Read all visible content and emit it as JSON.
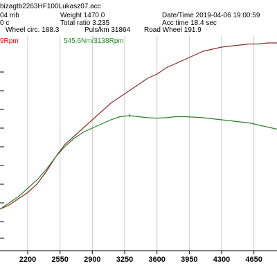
{
  "header": {
    "filename": "bizagtb2263HF100Lukasz07.acc",
    "row1_left_cut": "04 mb",
    "weight": "Weight  1470.0",
    "datetime": "Date/Time  2019-04-06 19:00:59",
    "row2_left_cut": "0 c",
    "total_ratio": "Total ratio 3.235",
    "acc_time": "Acc time  18.4 sec",
    "wheel_circ": "Wheel circ. 188.3",
    "puls_km": "Puls/km  31864",
    "road_wheel": "Road Wheel 191.9"
  },
  "legend": {
    "power_label_cut": "9Rpm",
    "torque_label": "545.6Nm/3138Rpm"
  },
  "colors": {
    "power": "#8a2b2b",
    "torque": "#2a7d2a",
    "grid": "#c8c8c8",
    "axis": "#000000",
    "legend_red": "#ff0000",
    "legend_green": "#2a8a2a"
  },
  "chart_data": {
    "type": "line",
    "xlim": [
      1900,
      4900
    ],
    "ylim": [
      0,
      1
    ],
    "x_ticks": [
      2200,
      2550,
      2900,
      3250,
      3600,
      3950,
      4300,
      4650
    ],
    "x_tick_labels": [
      "2200",
      "2550",
      "2900",
      "3250",
      "3600",
      "3950",
      "4300",
      "4650"
    ],
    "y_tick_values": [
      0.06,
      0.14,
      0.23,
      0.32,
      0.41,
      0.5,
      0.59,
      0.68,
      0.77,
      0.86
    ],
    "grid": true,
    "series": [
      {
        "key": "power",
        "x": [
          1900,
          2000,
          2100,
          2200,
          2300,
          2400,
          2500,
          2600,
          2700,
          2800,
          2900,
          3000,
          3100,
          3200,
          3300,
          3400,
          3500,
          3600,
          3700,
          3800,
          3900,
          4000,
          4100,
          4200,
          4300,
          4400,
          4500,
          4600,
          4700,
          4800,
          4900
        ],
        "y": [
          0.2,
          0.22,
          0.25,
          0.28,
          0.32,
          0.38,
          0.45,
          0.51,
          0.55,
          0.59,
          0.63,
          0.67,
          0.71,
          0.74,
          0.77,
          0.8,
          0.83,
          0.85,
          0.88,
          0.9,
          0.92,
          0.94,
          0.96,
          0.97,
          0.98,
          0.985,
          0.99,
          0.995,
          0.995,
          1.0,
          1.0
        ]
      },
      {
        "key": "torque",
        "x": [
          1900,
          2000,
          2100,
          2200,
          2300,
          2400,
          2500,
          2600,
          2700,
          2800,
          2900,
          3000,
          3100,
          3200,
          3300,
          3400,
          3500,
          3600,
          3700,
          3800,
          3900,
          4000,
          4100,
          4200,
          4300,
          4400,
          4500,
          4600,
          4700,
          4800,
          4900
        ],
        "y": [
          0.2,
          0.23,
          0.26,
          0.3,
          0.34,
          0.39,
          0.45,
          0.5,
          0.54,
          0.57,
          0.59,
          0.61,
          0.63,
          0.645,
          0.65,
          0.645,
          0.64,
          0.638,
          0.64,
          0.645,
          0.645,
          0.643,
          0.64,
          0.635,
          0.63,
          0.625,
          0.62,
          0.615,
          0.605,
          0.595,
          0.585
        ]
      }
    ]
  }
}
